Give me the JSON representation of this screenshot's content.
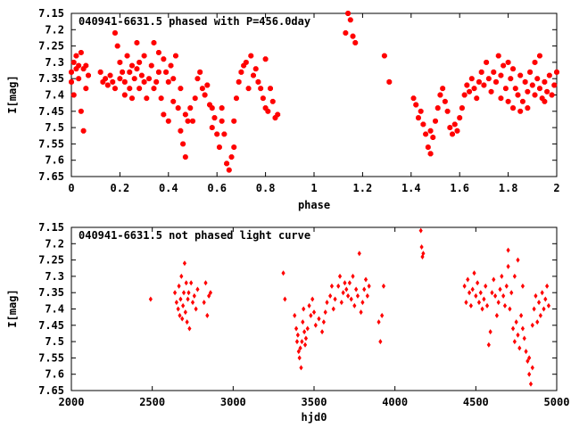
{
  "chart_data": [
    {
      "type": "scatter",
      "title": "040941-6631.5 phased with P=456.0day",
      "xlabel": "phase",
      "ylabel": "I[mag]",
      "xlim": [
        0,
        2
      ],
      "ylim": [
        7.65,
        7.15
      ],
      "y_inverted": true,
      "grid": false,
      "marker_color": "#ff0000",
      "marker_shape": "filled-octagon",
      "x_ticks": [
        "0",
        "0.2",
        "0.4",
        "0.6",
        "0.8",
        "1",
        "1.2",
        "1.4",
        "1.6",
        "1.8",
        "2"
      ],
      "y_ticks": [
        "7.15",
        "7.2",
        "7.25",
        "7.3",
        "7.35",
        "7.4",
        "7.45",
        "7.5",
        "7.55",
        "7.6",
        "7.65"
      ],
      "points": [
        [
          0.0,
          7.33
        ],
        [
          0.0,
          7.36
        ],
        [
          0.01,
          7.3
        ],
        [
          0.01,
          7.4
        ],
        [
          0.02,
          7.32
        ],
        [
          0.02,
          7.28
        ],
        [
          0.03,
          7.35
        ],
        [
          0.03,
          7.31
        ],
        [
          0.04,
          7.27
        ],
        [
          0.04,
          7.45
        ],
        [
          0.05,
          7.51
        ],
        [
          0.05,
          7.32
        ],
        [
          0.06,
          7.31
        ],
        [
          0.06,
          7.38
        ],
        [
          0.07,
          7.34
        ],
        [
          0.12,
          7.33
        ],
        [
          0.13,
          7.36
        ],
        [
          0.14,
          7.35
        ],
        [
          0.15,
          7.37
        ],
        [
          0.16,
          7.34
        ],
        [
          0.17,
          7.36
        ],
        [
          0.18,
          7.21
        ],
        [
          0.18,
          7.38
        ],
        [
          0.19,
          7.25
        ],
        [
          0.2,
          7.3
        ],
        [
          0.2,
          7.35
        ],
        [
          0.21,
          7.33
        ],
        [
          0.22,
          7.36
        ],
        [
          0.22,
          7.4
        ],
        [
          0.23,
          7.28
        ],
        [
          0.24,
          7.33
        ],
        [
          0.24,
          7.38
        ],
        [
          0.25,
          7.31
        ],
        [
          0.25,
          7.41
        ],
        [
          0.26,
          7.35
        ],
        [
          0.27,
          7.32
        ],
        [
          0.27,
          7.24
        ],
        [
          0.28,
          7.3
        ],
        [
          0.28,
          7.38
        ],
        [
          0.29,
          7.34
        ],
        [
          0.3,
          7.36
        ],
        [
          0.3,
          7.28
        ],
        [
          0.31,
          7.41
        ],
        [
          0.32,
          7.35
        ],
        [
          0.33,
          7.31
        ],
        [
          0.34,
          7.24
        ],
        [
          0.34,
          7.38
        ],
        [
          0.35,
          7.36
        ],
        [
          0.36,
          7.33
        ],
        [
          0.36,
          7.27
        ],
        [
          0.37,
          7.41
        ],
        [
          0.38,
          7.46
        ],
        [
          0.38,
          7.29
        ],
        [
          0.39,
          7.33
        ],
        [
          0.4,
          7.36
        ],
        [
          0.4,
          7.48
        ],
        [
          0.41,
          7.31
        ],
        [
          0.42,
          7.35
        ],
        [
          0.42,
          7.42
        ],
        [
          0.43,
          7.28
        ],
        [
          0.44,
          7.44
        ],
        [
          0.45,
          7.38
        ],
        [
          0.45,
          7.51
        ],
        [
          0.46,
          7.55
        ],
        [
          0.47,
          7.46
        ],
        [
          0.47,
          7.59
        ],
        [
          0.48,
          7.48
        ],
        [
          0.49,
          7.44
        ],
        [
          0.5,
          7.48
        ],
        [
          0.51,
          7.41
        ],
        [
          0.52,
          7.35
        ],
        [
          0.53,
          7.33
        ],
        [
          0.54,
          7.38
        ],
        [
          0.55,
          7.4
        ],
        [
          0.56,
          7.37
        ],
        [
          0.57,
          7.43
        ],
        [
          0.58,
          7.44
        ],
        [
          0.58,
          7.5
        ],
        [
          0.59,
          7.47
        ],
        [
          0.6,
          7.52
        ],
        [
          0.61,
          7.56
        ],
        [
          0.62,
          7.44
        ],
        [
          0.62,
          7.48
        ],
        [
          0.63,
          7.52
        ],
        [
          0.64,
          7.61
        ],
        [
          0.65,
          7.63
        ],
        [
          0.66,
          7.59
        ],
        [
          0.67,
          7.56
        ],
        [
          0.67,
          7.48
        ],
        [
          0.68,
          7.41
        ],
        [
          0.69,
          7.36
        ],
        [
          0.7,
          7.33
        ],
        [
          0.71,
          7.31
        ],
        [
          0.72,
          7.3
        ],
        [
          0.73,
          7.38
        ],
        [
          0.74,
          7.28
        ],
        [
          0.75,
          7.34
        ],
        [
          0.76,
          7.32
        ],
        [
          0.77,
          7.36
        ],
        [
          0.78,
          7.38
        ],
        [
          0.79,
          7.41
        ],
        [
          0.8,
          7.44
        ],
        [
          0.8,
          7.29
        ],
        [
          0.81,
          7.45
        ],
        [
          0.82,
          7.38
        ],
        [
          0.83,
          7.42
        ],
        [
          0.84,
          7.47
        ],
        [
          0.85,
          7.46
        ],
        [
          1.13,
          7.21
        ],
        [
          1.14,
          7.15
        ],
        [
          1.15,
          7.17
        ],
        [
          1.16,
          7.22
        ],
        [
          1.17,
          7.24
        ],
        [
          1.29,
          7.28
        ],
        [
          1.31,
          7.36
        ],
        [
          1.41,
          7.41
        ],
        [
          1.42,
          7.43
        ],
        [
          1.43,
          7.47
        ],
        [
          1.44,
          7.45
        ],
        [
          1.45,
          7.49
        ],
        [
          1.46,
          7.52
        ],
        [
          1.47,
          7.56
        ],
        [
          1.48,
          7.51
        ],
        [
          1.48,
          7.58
        ],
        [
          1.49,
          7.53
        ],
        [
          1.5,
          7.48
        ],
        [
          1.51,
          7.44
        ],
        [
          1.52,
          7.4
        ],
        [
          1.53,
          7.38
        ],
        [
          1.54,
          7.42
        ],
        [
          1.55,
          7.45
        ],
        [
          1.56,
          7.5
        ],
        [
          1.57,
          7.52
        ],
        [
          1.58,
          7.49
        ],
        [
          1.59,
          7.51
        ],
        [
          1.6,
          7.47
        ],
        [
          1.61,
          7.44
        ],
        [
          1.62,
          7.4
        ],
        [
          1.63,
          7.37
        ],
        [
          1.64,
          7.39
        ],
        [
          1.65,
          7.35
        ],
        [
          1.66,
          7.38
        ],
        [
          1.67,
          7.41
        ],
        [
          1.68,
          7.36
        ],
        [
          1.69,
          7.33
        ],
        [
          1.7,
          7.37
        ],
        [
          1.71,
          7.3
        ],
        [
          1.72,
          7.35
        ],
        [
          1.73,
          7.39
        ],
        [
          1.74,
          7.33
        ],
        [
          1.75,
          7.36
        ],
        [
          1.76,
          7.28
        ],
        [
          1.77,
          7.34
        ],
        [
          1.77,
          7.41
        ],
        [
          1.78,
          7.31
        ],
        [
          1.79,
          7.38
        ],
        [
          1.8,
          7.3
        ],
        [
          1.8,
          7.42
        ],
        [
          1.81,
          7.35
        ],
        [
          1.82,
          7.44
        ],
        [
          1.82,
          7.32
        ],
        [
          1.83,
          7.38
        ],
        [
          1.84,
          7.4
        ],
        [
          1.85,
          7.45
        ],
        [
          1.85,
          7.34
        ],
        [
          1.86,
          7.42
        ],
        [
          1.87,
          7.36
        ],
        [
          1.88,
          7.39
        ],
        [
          1.88,
          7.44
        ],
        [
          1.89,
          7.33
        ],
        [
          1.9,
          7.37
        ],
        [
          1.91,
          7.3
        ],
        [
          1.91,
          7.4
        ],
        [
          1.92,
          7.35
        ],
        [
          1.93,
          7.38
        ],
        [
          1.94,
          7.41
        ],
        [
          1.95,
          7.36
        ],
        [
          1.96,
          7.39
        ],
        [
          1.97,
          7.34
        ],
        [
          1.98,
          7.4
        ],
        [
          1.99,
          7.37
        ],
        [
          2.0,
          7.33
        ],
        [
          1.93,
          7.28
        ],
        [
          1.95,
          7.42
        ]
      ]
    },
    {
      "type": "scatter",
      "title": "040941-6631.5 not phased light curve",
      "xlabel": "hjd0",
      "ylabel": "I[mag]",
      "xlim": [
        2000,
        5000
      ],
      "ylim": [
        7.65,
        7.15
      ],
      "y_inverted": true,
      "grid": false,
      "marker_color": "#ff0000",
      "marker_shape": "filled-diamond",
      "x_ticks": [
        "2000",
        "2500",
        "3000",
        "3500",
        "4000",
        "4500",
        "5000"
      ],
      "y_ticks": [
        "7.15",
        "7.2",
        "7.25",
        "7.3",
        "7.35",
        "7.4",
        "7.45",
        "7.5",
        "7.55",
        "7.6",
        "7.65"
      ],
      "points": [
        [
          2490,
          7.37
        ],
        [
          2640,
          7.35
        ],
        [
          2650,
          7.38
        ],
        [
          2660,
          7.4
        ],
        [
          2665,
          7.33
        ],
        [
          2670,
          7.42
        ],
        [
          2675,
          7.37
        ],
        [
          2680,
          7.3
        ],
        [
          2685,
          7.43
        ],
        [
          2690,
          7.39
        ],
        [
          2695,
          7.35
        ],
        [
          2700,
          7.26
        ],
        [
          2705,
          7.41
        ],
        [
          2710,
          7.32
        ],
        [
          2715,
          7.44
        ],
        [
          2720,
          7.37
        ],
        [
          2725,
          7.35
        ],
        [
          2730,
          7.46
        ],
        [
          2740,
          7.32
        ],
        [
          2750,
          7.38
        ],
        [
          2760,
          7.36
        ],
        [
          2770,
          7.4
        ],
        [
          2780,
          7.34
        ],
        [
          2820,
          7.38
        ],
        [
          2830,
          7.32
        ],
        [
          2840,
          7.42
        ],
        [
          2850,
          7.36
        ],
        [
          2860,
          7.35
        ],
        [
          3310,
          7.29
        ],
        [
          3320,
          7.37
        ],
        [
          3380,
          7.42
        ],
        [
          3390,
          7.46
        ],
        [
          3395,
          7.5
        ],
        [
          3400,
          7.48
        ],
        [
          3405,
          7.53
        ],
        [
          3410,
          7.55
        ],
        [
          3415,
          7.52
        ],
        [
          3420,
          7.58
        ],
        [
          3425,
          7.5
        ],
        [
          3430,
          7.44
        ],
        [
          3435,
          7.4
        ],
        [
          3440,
          7.47
        ],
        [
          3445,
          7.51
        ],
        [
          3450,
          7.49
        ],
        [
          3460,
          7.46
        ],
        [
          3470,
          7.39
        ],
        [
          3480,
          7.42
        ],
        [
          3490,
          7.37
        ],
        [
          3500,
          7.41
        ],
        [
          3510,
          7.45
        ],
        [
          3530,
          7.43
        ],
        [
          3550,
          7.47
        ],
        [
          3560,
          7.44
        ],
        [
          3570,
          7.41
        ],
        [
          3580,
          7.38
        ],
        [
          3600,
          7.36
        ],
        [
          3610,
          7.33
        ],
        [
          3620,
          7.4
        ],
        [
          3630,
          7.37
        ],
        [
          3650,
          7.33
        ],
        [
          3660,
          7.3
        ],
        [
          3670,
          7.38
        ],
        [
          3680,
          7.35
        ],
        [
          3690,
          7.32
        ],
        [
          3700,
          7.34
        ],
        [
          3710,
          7.36
        ],
        [
          3720,
          7.32
        ],
        [
          3730,
          7.37
        ],
        [
          3740,
          7.3
        ],
        [
          3750,
          7.39
        ],
        [
          3760,
          7.34
        ],
        [
          3770,
          7.36
        ],
        [
          3780,
          7.23
        ],
        [
          3790,
          7.41
        ],
        [
          3800,
          7.38
        ],
        [
          3810,
          7.34
        ],
        [
          3820,
          7.31
        ],
        [
          3830,
          7.36
        ],
        [
          3840,
          7.33
        ],
        [
          3900,
          7.44
        ],
        [
          3910,
          7.5
        ],
        [
          3920,
          7.42
        ],
        [
          3930,
          7.33
        ],
        [
          4160,
          7.16
        ],
        [
          4165,
          7.21
        ],
        [
          4170,
          7.24
        ],
        [
          4175,
          7.23
        ],
        [
          4430,
          7.33
        ],
        [
          4440,
          7.38
        ],
        [
          4450,
          7.31
        ],
        [
          4460,
          7.35
        ],
        [
          4470,
          7.39
        ],
        [
          4480,
          7.34
        ],
        [
          4490,
          7.29
        ],
        [
          4500,
          7.36
        ],
        [
          4510,
          7.32
        ],
        [
          4520,
          7.38
        ],
        [
          4530,
          7.35
        ],
        [
          4540,
          7.4
        ],
        [
          4550,
          7.37
        ],
        [
          4560,
          7.33
        ],
        [
          4570,
          7.39
        ],
        [
          4580,
          7.51
        ],
        [
          4590,
          7.47
        ],
        [
          4600,
          7.35
        ],
        [
          4610,
          7.31
        ],
        [
          4620,
          7.36
        ],
        [
          4630,
          7.42
        ],
        [
          4640,
          7.38
        ],
        [
          4650,
          7.34
        ],
        [
          4660,
          7.3
        ],
        [
          4670,
          7.36
        ],
        [
          4680,
          7.39
        ],
        [
          4690,
          7.33
        ],
        [
          4700,
          7.27
        ],
        [
          4710,
          7.4
        ],
        [
          4720,
          7.35
        ],
        [
          4730,
          7.46
        ],
        [
          4740,
          7.5
        ],
        [
          4750,
          7.44
        ],
        [
          4760,
          7.48
        ],
        [
          4770,
          7.52
        ],
        [
          4780,
          7.42
        ],
        [
          4790,
          7.46
        ],
        [
          4800,
          7.49
        ],
        [
          4810,
          7.53
        ],
        [
          4820,
          7.56
        ],
        [
          4830,
          7.6
        ],
        [
          4840,
          7.63
        ],
        [
          4850,
          7.45
        ],
        [
          4860,
          7.4
        ],
        [
          4870,
          7.36
        ],
        [
          4880,
          7.44
        ],
        [
          4890,
          7.38
        ],
        [
          4900,
          7.42
        ],
        [
          4910,
          7.35
        ],
        [
          4920,
          7.4
        ],
        [
          4930,
          7.37
        ],
        [
          4940,
          7.33
        ],
        [
          4950,
          7.39
        ],
        [
          4700,
          7.22
        ],
        [
          4760,
          7.25
        ],
        [
          4740,
          7.3
        ],
        [
          4790,
          7.33
        ],
        [
          4830,
          7.55
        ],
        [
          4850,
          7.58
        ]
      ]
    }
  ]
}
